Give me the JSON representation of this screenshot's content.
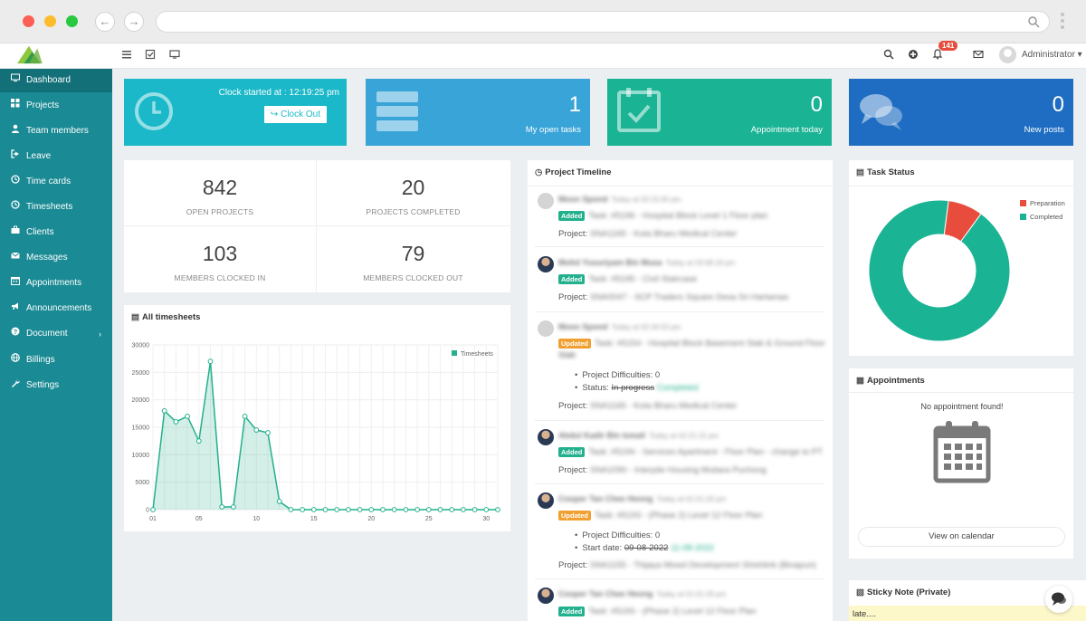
{
  "sidebar": {
    "items": [
      {
        "label": "Dashboard",
        "icon": "monitor-icon"
      },
      {
        "label": "Projects",
        "icon": "grid-icon"
      },
      {
        "label": "Team members",
        "icon": "user-icon"
      },
      {
        "label": "Leave",
        "icon": "sign-out-icon"
      },
      {
        "label": "Time cards",
        "icon": "clock-icon"
      },
      {
        "label": "Timesheets",
        "icon": "clock-icon"
      },
      {
        "label": "Clients",
        "icon": "briefcase-icon"
      },
      {
        "label": "Messages",
        "icon": "envelope-icon"
      },
      {
        "label": "Appointments",
        "icon": "calendar-icon"
      },
      {
        "label": "Announcements",
        "icon": "bullhorn-icon"
      },
      {
        "label": "Document",
        "icon": "question-icon"
      },
      {
        "label": "Billings",
        "icon": "globe-icon"
      },
      {
        "label": "Settings",
        "icon": "wrench-icon"
      }
    ],
    "caret": "›"
  },
  "topbar": {
    "notifications_count": "141",
    "user_label": "Administrator ▾"
  },
  "tiles": {
    "clock": {
      "text": "Clock started at : 12:19:25 pm",
      "button": "Clock Out"
    },
    "tasks": {
      "value": "1",
      "label": "My open tasks"
    },
    "appointments": {
      "value": "0",
      "label": "Appointment today"
    },
    "posts": {
      "value": "0",
      "label": "New posts"
    }
  },
  "stats": [
    {
      "value": "842",
      "label": "OPEN PROJECTS"
    },
    {
      "value": "20",
      "label": "PROJECTS COMPLETED"
    },
    {
      "value": "103",
      "label": "MEMBERS CLOCKED IN"
    },
    {
      "value": "79",
      "label": "MEMBERS CLOCKED OUT"
    }
  ],
  "timesheets_panel": {
    "title": "All timesheets",
    "legend": "Timesheets"
  },
  "chart_data": {
    "type": "area",
    "title": "All timesheets",
    "series": [
      {
        "name": "Timesheets",
        "values": [
          0,
          18000,
          16000,
          17000,
          12500,
          27000,
          500,
          500,
          17000,
          14500,
          14000,
          1500,
          0,
          0,
          0,
          0,
          0,
          0,
          0,
          0,
          0,
          0,
          0,
          0,
          0,
          0,
          0,
          0,
          0,
          0,
          0
        ]
      }
    ],
    "x": [
      0,
      1,
      2,
      3,
      4,
      5,
      6,
      7,
      8,
      9,
      10,
      11,
      12,
      13,
      14,
      15,
      16,
      17,
      18,
      19,
      20,
      21,
      22,
      23,
      24,
      25,
      26,
      27,
      28,
      29,
      30
    ],
    "x_tick_labels": [
      "01",
      "05",
      "10",
      "15",
      "20",
      "25",
      "30"
    ],
    "y_ticks": [
      "30000",
      "25000",
      "20000",
      "15000",
      "10000",
      "5000",
      "0"
    ],
    "ylim": [
      0,
      30000
    ],
    "color": "#23b08d",
    "grid": true,
    "legend_position": "top-right"
  },
  "timeline": {
    "title": "Project Timeline",
    "entries": [
      {
        "name": "Moon Spond",
        "time": "Today at 03:15:00 pm",
        "tag": "Added",
        "task": "Task: #5196 - Hospital Block Level 1 Floor plan",
        "project": "SNA1165 - Kota Bharu Medical Center",
        "bullets": []
      },
      {
        "name": "Mohd Yusuriyam Bin Musa",
        "time": "Today at 03:08:19 pm",
        "tag": "Added",
        "task": "Task: #5195 - Civil Staircase",
        "project": "SNA0047 - SCP Traders Square Desa Sri Hartamas",
        "bullets": []
      },
      {
        "name": "Moon Spond",
        "time": "Today at 02:34:53 pm",
        "tag": "Updated",
        "task": "Task: #5154 - Hospital Block Basement Slab & Ground Floor",
        "task2": "Slab",
        "project": "SNA1165 - Kota Bharu Medical Center",
        "bullets": [
          "Project Difficulties: 0",
          "Status:",
          "In progress",
          "Completed"
        ]
      },
      {
        "name": "Abdul Kadir Bin Ismail",
        "time": "Today at 02:21:15 pm",
        "tag": "Added",
        "task": "Task: #5194 - Services Apartment - Floor Plan - change to PT",
        "project": "SNA1090 - Interpile Housing Mutiara Puchong",
        "bullets": []
      },
      {
        "name": "Cooper Tan Chee Heong",
        "time": "Today at 01:01:26 pm",
        "tag": "Updated",
        "task": "Task: #5193 - (Phase 2) Level 12 Floor Plan",
        "project": "SNA1155 - Thijaya Mixed Development Shishlink (Binapuri)",
        "bullets": [
          "Project Difficulties: 0",
          "Start date:",
          "09-08-2022",
          "11-08-2022"
        ]
      },
      {
        "name": "Cooper Tan Chee Heong",
        "time": "Today at 01:01:26 pm",
        "tag": "Added",
        "task": "Task: #5193 - (Phase 2) Level 12 Floor Plan",
        "project": "",
        "bullets": []
      }
    ],
    "project_prefix": "Project:"
  },
  "task_status": {
    "title": "Task Status",
    "legend": [
      {
        "label": "Preparation",
        "color": "#e74c3c"
      },
      {
        "label": "Completed",
        "color": "#1ab394"
      }
    ],
    "values": {
      "Preparation": 8,
      "Completed": 92
    }
  },
  "appointments_panel": {
    "title": "Appointments",
    "empty": "No appointment found!",
    "button": "View on calendar"
  },
  "sticky_note": {
    "title": "Sticky Note (Private)",
    "text": "late...."
  }
}
